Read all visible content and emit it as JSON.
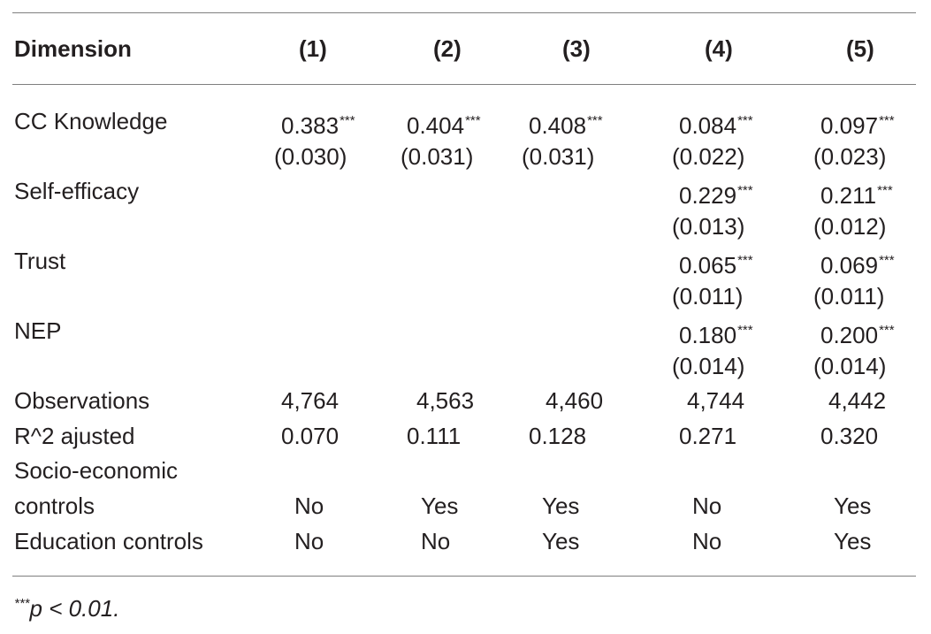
{
  "table": {
    "headers": [
      "Dimension",
      "(1)",
      "(2)",
      "(3)",
      "(4)",
      "(5)"
    ],
    "rows": {
      "cc_knowledge": {
        "label": "CC Knowledge",
        "coef": [
          "0.383",
          "0.404",
          "0.408",
          "0.084",
          "0.097"
        ],
        "se": [
          "(0.030)",
          "(0.031)",
          "(0.031)",
          "(0.022)",
          "(0.023)"
        ]
      },
      "self_efficacy": {
        "label": "Self-efficacy",
        "coef4": "0.229",
        "coef5": "0.211",
        "se4": "(0.013)",
        "se5": "(0.012)"
      },
      "trust": {
        "label": "Trust",
        "coef4": "0.065",
        "coef5": "0.069",
        "se4": "(0.011)",
        "se5": "(0.011)"
      },
      "nep": {
        "label": "NEP",
        "coef4": "0.180",
        "coef5": "0.200",
        "se4": "(0.014)",
        "se5": "(0.014)"
      },
      "observations": {
        "label": "Observations",
        "values": [
          "4,764",
          "4,563",
          "4,460",
          "4,744",
          "4,442"
        ]
      },
      "r2": {
        "label": "R^2 ajusted",
        "values": [
          "0.070",
          "0.111",
          "0.128",
          "0.271",
          "0.320"
        ]
      },
      "socio": {
        "label_line1": "Socio-economic",
        "label_line2": "controls",
        "values": [
          "No",
          "Yes",
          "Yes",
          "No",
          "Yes"
        ]
      },
      "education": {
        "label": "Education controls",
        "values": [
          "No",
          "No",
          "Yes",
          "No",
          "Yes"
        ]
      }
    },
    "significance_mark": "***"
  },
  "footnote": {
    "stars": "***",
    "text": "p < 0.01."
  }
}
